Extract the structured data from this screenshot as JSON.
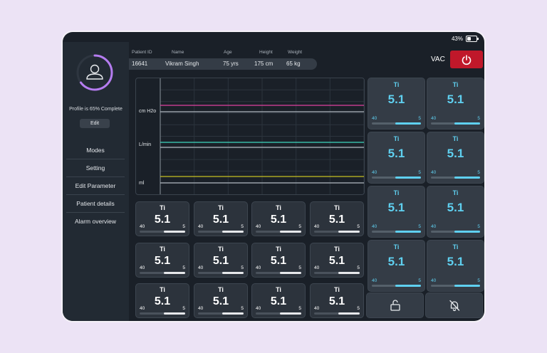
{
  "status": {
    "battery": "43%",
    "battery_level": 0.43
  },
  "sidebar": {
    "profile_progress": 0.65,
    "profile_text": "Profile is 65% Complete",
    "edit_label": "Edit",
    "avatar_icon": "user-icon",
    "menu": [
      "Modes",
      "Setting",
      "Edit Parameter",
      "Patient details",
      "Alarm overview"
    ]
  },
  "patient": {
    "headers": {
      "id": "Patient ID",
      "name": "Name",
      "age": "Age",
      "height": "Height",
      "weight": "Weight"
    },
    "values": {
      "id": "16641",
      "name": "Vikram Singh",
      "age": "75 yrs",
      "height": "175 cm",
      "weight": "65 kg"
    }
  },
  "vac": {
    "label": "VAC",
    "power_icon": "power-icon",
    "power_color": "#c0182a"
  },
  "chart_data": {
    "type": "line",
    "ylabels": [
      "cm H2o",
      "L/min",
      "ml"
    ],
    "series": [
      {
        "color": "#e040a0"
      },
      {
        "color": "#b0b8c0"
      },
      {
        "color": "#3fd8c0"
      },
      {
        "color": "#b0b8c0"
      },
      {
        "color": "#c8c020"
      },
      {
        "color": "#b0b8c0"
      }
    ],
    "grid": true
  },
  "tile_template": {
    "label": "Ti",
    "value": "5.1",
    "min": "40",
    "max": "5"
  },
  "small_tiles": [
    {
      "label": "Ti",
      "value": "5.1",
      "min": "40",
      "max": "5",
      "level": 0.47
    },
    {
      "label": "Ti",
      "value": "5.1",
      "min": "40",
      "max": "5",
      "level": 0.47
    },
    {
      "label": "Ti",
      "value": "5.1",
      "min": "40",
      "max": "5",
      "level": 0.47
    },
    {
      "label": "Ti",
      "value": "5.1",
      "min": "40",
      "max": "5",
      "level": 0.47
    },
    {
      "label": "Ti",
      "value": "5.1",
      "min": "40",
      "max": "5",
      "level": 0.47
    },
    {
      "label": "Ti",
      "value": "5.1",
      "min": "40",
      "max": "5",
      "level": 0.47
    },
    {
      "label": "Ti",
      "value": "5.1",
      "min": "40",
      "max": "5",
      "level": 0.47
    },
    {
      "label": "Ti",
      "value": "5.1",
      "min": "40",
      "max": "5",
      "level": 0.47
    },
    {
      "label": "Ti",
      "value": "5.1",
      "min": "40",
      "max": "5",
      "level": 0.47
    },
    {
      "label": "Ti",
      "value": "5.1",
      "min": "40",
      "max": "5",
      "level": 0.47
    },
    {
      "label": "Ti",
      "value": "5.1",
      "min": "40",
      "max": "5",
      "level": 0.47
    },
    {
      "label": "Ti",
      "value": "5.1",
      "min": "40",
      "max": "5",
      "level": 0.47
    }
  ],
  "big_tiles": [
    {
      "label": "Ti",
      "value": "5.1",
      "min": "40",
      "max": "5",
      "level": 0.52
    },
    {
      "label": "Ti",
      "value": "5.1",
      "min": "40",
      "max": "5",
      "level": 0.52
    },
    {
      "label": "Ti",
      "value": "5.1",
      "min": "40",
      "max": "5",
      "level": 0.52
    },
    {
      "label": "Ti",
      "value": "5.1",
      "min": "40",
      "max": "5",
      "level": 0.52
    },
    {
      "label": "Ti",
      "value": "5.1",
      "min": "40",
      "max": "5",
      "level": 0.52
    },
    {
      "label": "Ti",
      "value": "5.1",
      "min": "40",
      "max": "5",
      "level": 0.52
    },
    {
      "label": "Ti",
      "value": "5.1",
      "min": "40",
      "max": "5",
      "level": 0.52
    },
    {
      "label": "Ti",
      "value": "5.1",
      "min": "40",
      "max": "5",
      "level": 0.52
    }
  ],
  "controls": {
    "lock_icon": "unlock-icon",
    "alarm_icon": "bell-off-icon"
  },
  "colors": {
    "accent": "#5fd0f0",
    "ring": "#b57cf0",
    "background": "#1a2028"
  }
}
